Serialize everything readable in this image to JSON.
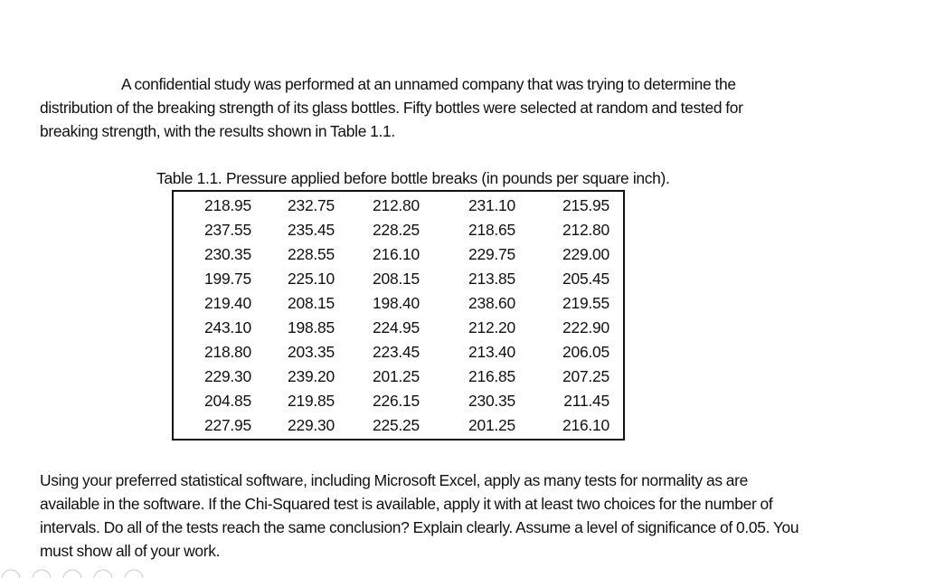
{
  "intro_paragraph": "A confidential study was performed at an unnamed company that was trying to determine the distribution of the breaking strength of its glass bottles. Fifty bottles were selected at random and tested for breaking strength, with the results shown in Table 1.1.",
  "table": {
    "caption": "Table 1.1. Pressure applied before bottle breaks (in pounds per square inch).",
    "rows": [
      [
        "218.95",
        "232.75",
        "212.80",
        "231.10",
        "215.95"
      ],
      [
        "237.55",
        "235.45",
        "228.25",
        "218.65",
        "212.80"
      ],
      [
        "230.35",
        "228.55",
        "216.10",
        "229.75",
        "229.00"
      ],
      [
        "199.75",
        "225.10",
        "208.15",
        "213.85",
        "205.45"
      ],
      [
        "219.40",
        "208.15",
        "198.40",
        "238.60",
        "219.55"
      ],
      [
        "243.10",
        "198.85",
        "224.95",
        "212.20",
        "222.90"
      ],
      [
        "218.80",
        "203.35",
        "223.45",
        "213.40",
        "206.05"
      ],
      [
        "229.30",
        "239.20",
        "201.25",
        "216.85",
        "207.25"
      ],
      [
        "204.85",
        "219.85",
        "226.15",
        "230.35",
        "211.45"
      ],
      [
        "227.95",
        "229.30",
        "225.25",
        "201.25",
        "216.10"
      ]
    ]
  },
  "question_paragraph": "Using your preferred statistical software, including Microsoft Excel, apply as many tests for normality as are available in the software. If the Chi-Squared test is available, apply it with at least two choices for the number of intervals. Do all of the tests reach the same conclusion? Explain clearly. Assume a level of significance of 0.05. You must show all of your work."
}
